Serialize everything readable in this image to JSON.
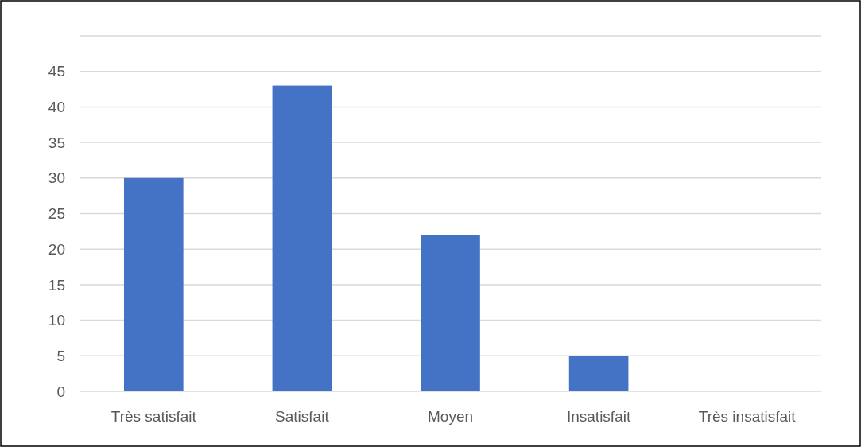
{
  "chart_data": {
    "type": "bar",
    "categories": [
      "Très satisfait",
      "Satisfait",
      "Moyen",
      "Insatisfait",
      "Très insatisfait"
    ],
    "values": [
      30,
      43,
      22,
      5,
      0
    ],
    "color": "#4472c4",
    "ylim": [
      0,
      50
    ],
    "yticks": [
      0,
      5,
      10,
      15,
      20,
      25,
      30,
      35,
      40,
      45,
      {
        "value": 50,
        "label": null
      }
    ],
    "grid": "y"
  }
}
